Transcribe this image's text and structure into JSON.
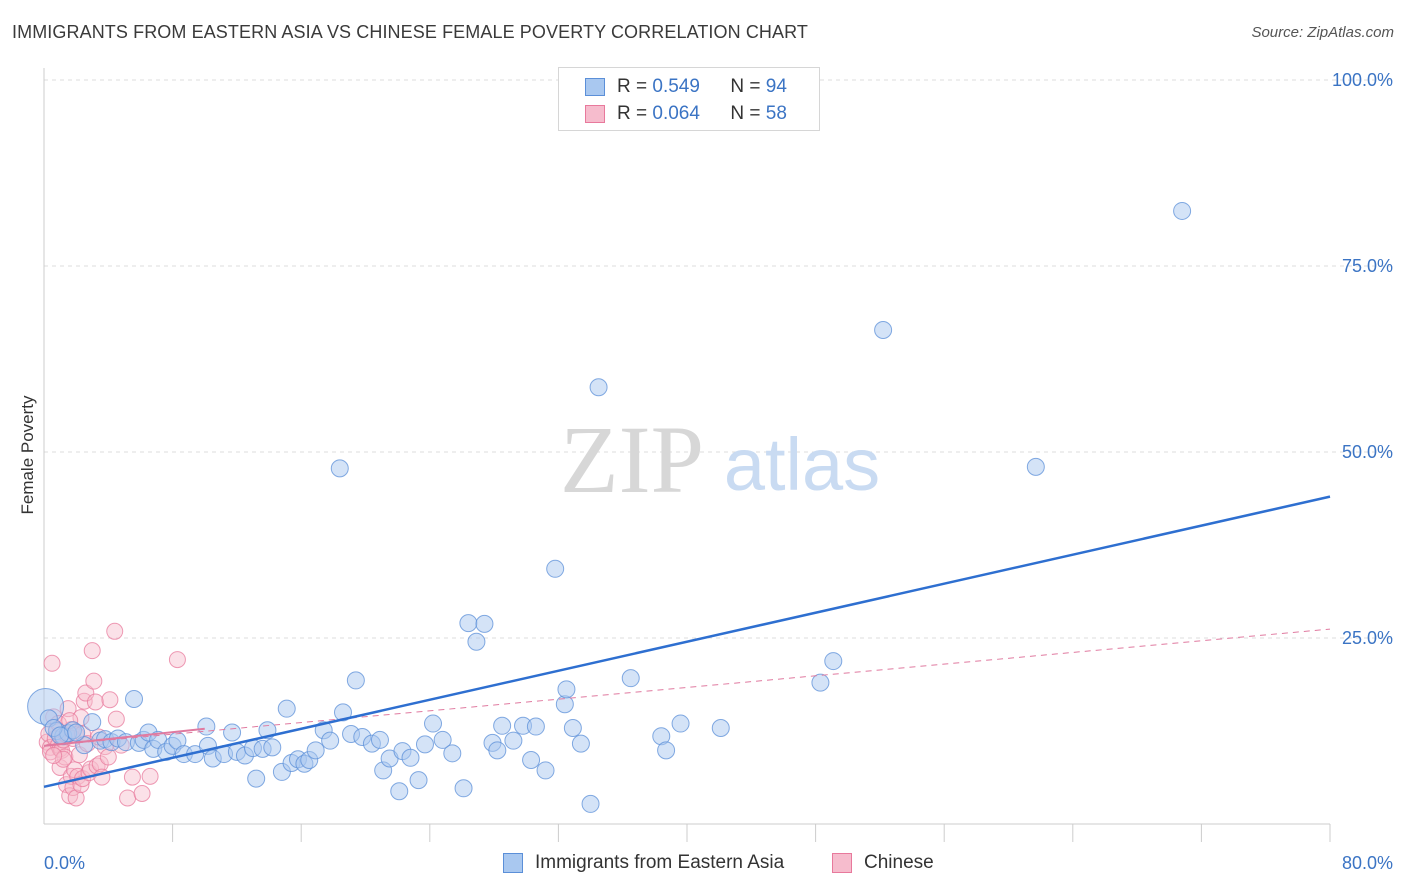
{
  "title": "IMMIGRANTS FROM EASTERN ASIA VS CHINESE FEMALE POVERTY CORRELATION CHART",
  "source": "Source: ZipAtlas.com",
  "watermark": {
    "zip": "ZIP",
    "atlas": "atlas"
  },
  "legend": {
    "series1": {
      "r_label": "R =",
      "r_value": "0.549",
      "n_label": "N =",
      "n_value": "94"
    },
    "series2": {
      "r_label": "R =",
      "r_value": "0.064",
      "n_label": "N =",
      "n_value": "58"
    }
  },
  "colors": {
    "blue_fill": "#a9c8f0",
    "blue_stroke": "#5b8fd8",
    "blue_line": "#2e6fd0",
    "pink_fill": "#f6bccd",
    "pink_stroke": "#e8799c",
    "pink_line": "#e07aa0",
    "axis_text": "#3b74c4",
    "grid": "#dddddd"
  },
  "chart_data": {
    "type": "scatter",
    "title": "IMMIGRANTS FROM EASTERN ASIA VS CHINESE FEMALE POVERTY CORRELATION CHART",
    "xlabel": "",
    "ylabel": "Female Poverty",
    "xlim": [
      0,
      80
    ],
    "ylim": [
      0,
      100
    ],
    "x_tick_labels": [
      "0.0%",
      "80.0%"
    ],
    "y_ticks": [
      25,
      50,
      75,
      100
    ],
    "y_tick_labels": [
      "25.0%",
      "50.0%",
      "75.0%",
      "100.0%"
    ],
    "x_minor_ticks": [
      8,
      16,
      24,
      32,
      40,
      48,
      56,
      64,
      72,
      80
    ],
    "grid": true,
    "legend_position": "top-center",
    "series": [
      {
        "name": "Immigrants from Eastern Asia",
        "r": 0.549,
        "n": 94,
        "trend": {
          "x0": 0,
          "y0": 5.0,
          "x1": 80,
          "y1": 44.0,
          "style": "solid"
        },
        "points": [
          [
            0.1,
            15.8
          ],
          [
            0.3,
            14.2
          ],
          [
            0.8,
            12.5
          ],
          [
            1.2,
            11.8
          ],
          [
            1.5,
            12.2
          ],
          [
            1.8,
            12.6
          ],
          [
            2.5,
            10.6
          ],
          [
            3,
            13.7
          ],
          [
            3.5,
            11.2
          ],
          [
            3.8,
            11.4
          ],
          [
            4.2,
            11.0
          ],
          [
            4.6,
            11.5
          ],
          [
            5.1,
            11.0
          ],
          [
            5.6,
            16.8
          ],
          [
            5.9,
            10.9
          ],
          [
            6.2,
            11.3
          ],
          [
            6.5,
            12.3
          ],
          [
            6.8,
            10.1
          ],
          [
            7.1,
            11.3
          ],
          [
            7.6,
            9.7
          ],
          [
            8,
            10.5
          ],
          [
            8.3,
            11.2
          ],
          [
            8.7,
            9.4
          ],
          [
            9.4,
            9.4
          ],
          [
            10.2,
            10.5
          ],
          [
            10.1,
            13.1
          ],
          [
            10.5,
            8.8
          ],
          [
            11.2,
            9.4
          ],
          [
            11.7,
            12.3
          ],
          [
            12,
            9.7
          ],
          [
            12.5,
            9.2
          ],
          [
            13,
            10.2
          ],
          [
            13.2,
            6.1
          ],
          [
            13.6,
            10.1
          ],
          [
            13.9,
            12.6
          ],
          [
            14.2,
            10.3
          ],
          [
            14.8,
            7.0
          ],
          [
            15.1,
            15.5
          ],
          [
            15.4,
            8.2
          ],
          [
            15.8,
            8.7
          ],
          [
            16.2,
            8.1
          ],
          [
            16.5,
            8.6
          ],
          [
            16.9,
            9.9
          ],
          [
            17.4,
            12.6
          ],
          [
            17.8,
            11.2
          ],
          [
            18.4,
            47.8
          ],
          [
            18.6,
            15.0
          ],
          [
            19.1,
            12.1
          ],
          [
            19.4,
            19.3
          ],
          [
            19.8,
            11.7
          ],
          [
            20.4,
            10.8
          ],
          [
            20.9,
            11.3
          ],
          [
            21.1,
            7.2
          ],
          [
            21.5,
            8.8
          ],
          [
            22.1,
            4.4
          ],
          [
            22.3,
            9.8
          ],
          [
            22.8,
            8.9
          ],
          [
            23.3,
            5.9
          ],
          [
            23.7,
            10.7
          ],
          [
            24.2,
            13.5
          ],
          [
            24.8,
            11.3
          ],
          [
            25.4,
            9.5
          ],
          [
            26.1,
            4.8
          ],
          [
            26.4,
            27.0
          ],
          [
            26.9,
            24.5
          ],
          [
            27.4,
            26.9
          ],
          [
            27.9,
            10.9
          ],
          [
            28.2,
            9.9
          ],
          [
            28.5,
            13.2
          ],
          [
            29.2,
            11.2
          ],
          [
            29.8,
            13.2
          ],
          [
            30.3,
            8.6
          ],
          [
            30.6,
            13.1
          ],
          [
            31.2,
            7.2
          ],
          [
            31.8,
            34.3
          ],
          [
            32.4,
            16.1
          ],
          [
            32.5,
            18.1
          ],
          [
            32.9,
            12.9
          ],
          [
            33.4,
            10.8
          ],
          [
            34,
            2.7
          ],
          [
            34.5,
            58.7
          ],
          [
            36.5,
            19.6
          ],
          [
            38.4,
            11.8
          ],
          [
            38.7,
            9.9
          ],
          [
            39.6,
            13.5
          ],
          [
            42.1,
            12.9
          ],
          [
            48.3,
            19.0
          ],
          [
            49.1,
            21.9
          ],
          [
            52.2,
            66.4
          ],
          [
            61.7,
            48.0
          ],
          [
            70.8,
            82.4
          ],
          [
            0.6,
            12.9
          ],
          [
            1.0,
            11.9
          ],
          [
            2.0,
            12.3
          ]
        ]
      },
      {
        "name": "Chinese",
        "r": 0.064,
        "n": 58,
        "trend": {
          "x0": 0,
          "y0": 10.5,
          "x1": 80,
          "y1": 26.2,
          "style": "dashed"
        },
        "trend_solid_segment": {
          "x0": 0,
          "y0": 10.5,
          "x1": 10,
          "y1": 12.8
        },
        "points": [
          [
            0.2,
            11.0
          ],
          [
            0.3,
            12.1
          ],
          [
            0.4,
            10.3
          ],
          [
            0.4,
            9.7
          ],
          [
            0.5,
            21.6
          ],
          [
            0.6,
            14.4
          ],
          [
            0.7,
            11.5
          ],
          [
            0.8,
            12.7
          ],
          [
            0.9,
            10.6
          ],
          [
            1.0,
            7.6
          ],
          [
            1.0,
            10.1
          ],
          [
            1.1,
            9.9
          ],
          [
            1.2,
            11.3
          ],
          [
            1.3,
            9.0
          ],
          [
            1.4,
            12.0
          ],
          [
            1.4,
            5.3
          ],
          [
            1.5,
            15.5
          ],
          [
            1.6,
            3.8
          ],
          [
            1.7,
            6.4
          ],
          [
            1.7,
            12.7
          ],
          [
            1.8,
            11.5
          ],
          [
            1.8,
            4.9
          ],
          [
            1.9,
            7.3
          ],
          [
            2.0,
            12.0
          ],
          [
            2.0,
            3.5
          ],
          [
            2.1,
            6.4
          ],
          [
            2.2,
            9.3
          ],
          [
            2.3,
            5.3
          ],
          [
            2.4,
            6.1
          ],
          [
            2.4,
            12.1
          ],
          [
            2.5,
            16.5
          ],
          [
            2.6,
            17.6
          ],
          [
            2.7,
            10.8
          ],
          [
            2.8,
            6.9
          ],
          [
            2.9,
            7.4
          ],
          [
            3.0,
            23.3
          ],
          [
            3.1,
            19.2
          ],
          [
            3.2,
            16.4
          ],
          [
            3.3,
            7.8
          ],
          [
            3.5,
            8.1
          ],
          [
            3.6,
            6.3
          ],
          [
            3.8,
            10.4
          ],
          [
            4.0,
            9.0
          ],
          [
            4.1,
            16.7
          ],
          [
            4.4,
            25.9
          ],
          [
            4.5,
            14.1
          ],
          [
            4.8,
            10.6
          ],
          [
            5.2,
            3.5
          ],
          [
            5.5,
            6.3
          ],
          [
            6.1,
            4.1
          ],
          [
            6.6,
            6.4
          ],
          [
            8.3,
            22.1
          ],
          [
            0.9,
            13.5
          ],
          [
            1.2,
            8.7
          ],
          [
            2.3,
            14.3
          ],
          [
            1.6,
            13.9
          ],
          [
            0.6,
            9.2
          ],
          [
            3.4,
            11.7
          ]
        ]
      }
    ]
  },
  "axis": {
    "x_left_label": "0.0%",
    "x_right_label": "80.0%",
    "y_title": "Female Poverty"
  }
}
